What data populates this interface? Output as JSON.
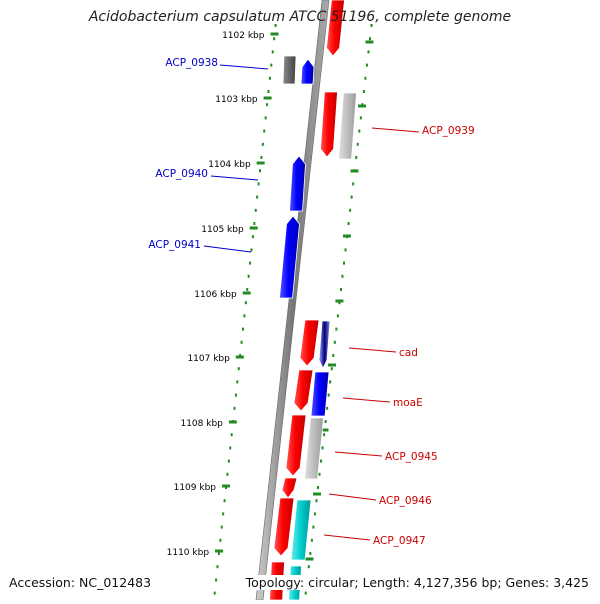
{
  "title": "Acidobacterium capsulatum ATCC 51196, complete genome",
  "accession": "Accession: NC_012483",
  "topology": "Topology: circular; Length: 4,127,356 bp; Genes: 3,425",
  "colors": {
    "red": "#ff0000",
    "blue": "#0000ff",
    "gray": "#bbbbbb",
    "darkgray": "#666666",
    "cyan": "#00cccc",
    "navy": "#000080",
    "ticks": "#228b22",
    "backbone": "#888888",
    "label_blue": "#0000cc",
    "label_red": "#cc0000"
  },
  "kbp_ticks": [
    "1102 kbp",
    "1103 kbp",
    "1104 kbp",
    "1105 kbp",
    "1106 kbp",
    "1107 kbp",
    "1108 kbp",
    "1109 kbp",
    "1110 kbp"
  ],
  "gene_labels": [
    {
      "text": "ACP_0938",
      "side": "left",
      "color": "blue"
    },
    {
      "text": "ACP_0939",
      "side": "right",
      "color": "red"
    },
    {
      "text": "ACP_0940",
      "side": "left",
      "color": "blue"
    },
    {
      "text": "ACP_0941",
      "side": "left",
      "color": "blue"
    },
    {
      "text": "cad",
      "side": "right",
      "color": "red"
    },
    {
      "text": "moaE",
      "side": "right",
      "color": "red"
    },
    {
      "text": "ACP_0945",
      "side": "right",
      "color": "red"
    },
    {
      "text": "ACP_0946",
      "side": "right",
      "color": "red"
    },
    {
      "text": "ACP_0947",
      "side": "right",
      "color": "red"
    }
  ]
}
